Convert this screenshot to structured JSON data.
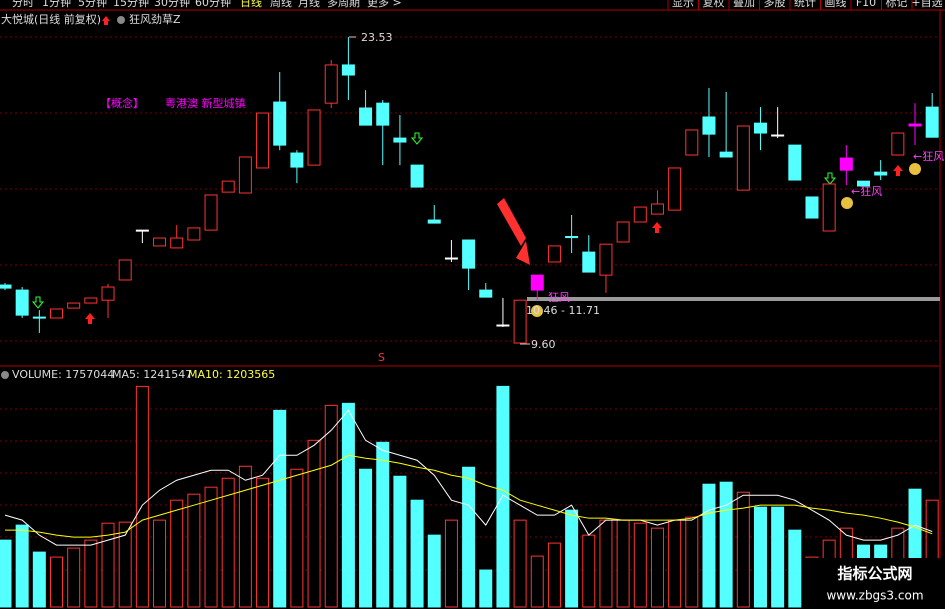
{
  "toolbar": {
    "periods": [
      "分时",
      "1分钟",
      "5分钟",
      "15分钟",
      "30分钟",
      "60分钟",
      "日线",
      "周线",
      "月线",
      "多周期",
      "更多 >"
    ],
    "tools": [
      "显示",
      "复权",
      "叠加",
      "多股",
      "统计",
      "画线",
      "F10",
      "标记",
      "+自选"
    ]
  },
  "header": {
    "stock": "大悦城(日线 前复权)",
    "indicator": "狂风劲草Z"
  },
  "notes": {
    "concept": "【概念】",
    "tags": "粤港澳 新型城镇"
  },
  "chart_data": [
    {
      "type": "candlestick",
      "open": [
        12.24,
        12.01,
        10.78,
        10.74,
        11.19,
        11.42,
        11.55,
        12.47,
        14.74,
        14.02,
        13.93,
        14.29,
        14.74,
        16.47,
        16.43,
        17.57,
        20.57,
        18.25,
        17.7,
        20.52,
        22.26,
        20.3,
        20.52,
        18.93,
        17.7,
        15.2,
        13.47,
        14.29,
        12.01,
        10.42,
        9.6,
        12.69,
        13.29,
        14.45,
        13.74,
        12.69,
        14.2,
        15.11,
        15.47,
        15.65,
        18.16,
        19.89,
        18.29,
        16.56,
        19.61,
        19.07,
        18.61,
        16.25,
        14.7,
        18.02,
        16.97,
        17.38,
        18.16,
        19.57,
        20.34
      ],
      "high": [
        12.33,
        12.15,
        11.1,
        11.15,
        11.42,
        11.65,
        12.29,
        13.38,
        14.74,
        14.38,
        14.97,
        14.84,
        16.34,
        16.97,
        18.07,
        20.07,
        21.94,
        18.38,
        20.21,
        22.48,
        23.53,
        21.11,
        20.66,
        19.98,
        17.7,
        15.88,
        14.29,
        14.29,
        12.33,
        11.65,
        11.55,
        12.69,
        14.02,
        15.43,
        14.51,
        14.1,
        15.11,
        15.79,
        16.56,
        17.57,
        19.3,
        21.21,
        21.03,
        19.48,
        20.34,
        20.34,
        18.61,
        16.25,
        16.84,
        18.61,
        16.97,
        17.93,
        19.16,
        20.52,
        20.98
      ],
      "low": [
        12.01,
        10.74,
        10.06,
        10.74,
        11.19,
        11.42,
        10.74,
        12.47,
        14.15,
        14.02,
        13.93,
        14.29,
        14.74,
        16.47,
        16.43,
        17.57,
        18.38,
        16.88,
        17.7,
        20.3,
        20.66,
        19.52,
        17.7,
        17.7,
        16.7,
        15.06,
        13.29,
        12.01,
        11.69,
        10.33,
        9.6,
        11.55,
        13.29,
        13.7,
        12.83,
        11.88,
        14.2,
        15.11,
        15.47,
        15.65,
        18.16,
        18.07,
        18.07,
        16.56,
        18.38,
        18.93,
        17.02,
        15.29,
        14.7,
        16.79,
        16.75,
        17.02,
        18.16,
        18.61,
        18.97
      ],
      "close": [
        12.1,
        10.87,
        10.74,
        11.15,
        11.42,
        11.65,
        12.15,
        13.38,
        14.74,
        14.38,
        14.38,
        14.84,
        16.34,
        16.97,
        18.07,
        20.07,
        18.61,
        17.61,
        20.21,
        22.26,
        21.8,
        19.52,
        19.52,
        18.75,
        16.7,
        15.06,
        13.47,
        13.01,
        11.69,
        10.42,
        11.55,
        12.01,
        14.02,
        14.4,
        12.83,
        14.1,
        15.11,
        15.79,
        15.93,
        17.57,
        19.3,
        19.11,
        18.07,
        19.48,
        19.16,
        19.07,
        17.02,
        15.29,
        16.84,
        17.47,
        16.75,
        17.25,
        19.16,
        19.48,
        18.97
      ],
      "colors": [
        "#54ffff",
        "#54ffff",
        "#54ffff",
        "#ff3232",
        "#ff3232",
        "#ff3232",
        "#ff3232",
        "#ff3232",
        "#ffffff",
        "#ff3232",
        "#ff3232",
        "#ff3232",
        "#ff3232",
        "#ff3232",
        "#ff3232",
        "#ff3232",
        "#54ffff",
        "#54ffff",
        "#ff3232",
        "#ff3232",
        "#54ffff",
        "#54ffff",
        "#54ffff",
        "#54ffff",
        "#54ffff",
        "#54ffff",
        "#ffffff",
        "#54ffff",
        "#54ffff",
        "#ffffff",
        "#ff3232",
        "#ff00ff",
        "#ff3232",
        "#54ffff",
        "#54ffff",
        "#ff3232",
        "#ff3232",
        "#ff3232",
        "#ff3232",
        "#ff3232",
        "#ff3232",
        "#54ffff",
        "#54ffff",
        "#ff3232",
        "#54ffff",
        "#ffffff",
        "#54ffff",
        "#54ffff",
        "#ff3232",
        "#ff00ff",
        "#54ffff",
        "#54ffff",
        "#ff3232",
        "#ff00ff",
        "#54ffff"
      ],
      "ylim": [
        8.6,
        24.67
      ],
      "annotations": {
        "high": "23.53",
        "low": "9.60",
        "zone": "10.46 - 11.71",
        "signals": [
          "狂风",
          "←狂风",
          "←狂风"
        ],
        "s": "S"
      }
    },
    {
      "type": "bar",
      "legend": [
        "VOLUME: 1757044",
        "MA5: 1241547",
        "MA10: 1203565"
      ],
      "series": [
        {
          "name": "VOLUME",
          "values": [
            1100000,
            1347000,
            903000,
            821000,
            969000,
            1100000,
            1379000,
            1396000,
            3629000,
            1429000,
            1757000,
            1856000,
            1971000,
            2118000,
            2315000,
            2118000,
            3235000,
            2266000,
            2742000,
            3317000,
            3350000,
            2266000,
            2709000,
            2151000,
            1757000,
            1182000,
            1429000,
            2299000,
            608000,
            3629000,
            1429000,
            837000,
            1051000,
            1593000,
            1182000,
            1429000,
            1429000,
            1379000,
            1297000,
            1429000,
            1478000,
            2020000,
            2053000,
            1888000,
            1642000,
            1642000,
            1264000,
            821000,
            1100000,
            1297000,
            1018000,
            1018000,
            1297000,
            1938000,
            1757044
          ],
          "colors": [
            "#54ffff",
            "#54ffff",
            "#54ffff",
            "#ff3232",
            "#ff3232",
            "#ff3232",
            "#ff3232",
            "#ff3232",
            "#ff3232",
            "#ff3232",
            "#ff3232",
            "#ff3232",
            "#ff3232",
            "#ff3232",
            "#ff3232",
            "#ff3232",
            "#54ffff",
            "#ff3232",
            "#ff3232",
            "#ff3232",
            "#54ffff",
            "#54ffff",
            "#54ffff",
            "#54ffff",
            "#54ffff",
            "#54ffff",
            "#ff3232",
            "#54ffff",
            "#54ffff",
            "#54ffff",
            "#ff3232",
            "#ff3232",
            "#ff3232",
            "#54ffff",
            "#ff3232",
            "#ff3232",
            "#ff3232",
            "#ff3232",
            "#ff3232",
            "#ff3232",
            "#ff3232",
            "#54ffff",
            "#54ffff",
            "#ff3232",
            "#54ffff",
            "#54ffff",
            "#54ffff",
            "#ff3232",
            "#ff3232",
            "#ff3232",
            "#54ffff",
            "#54ffff",
            "#ff3232",
            "#54ffff",
            "#ff3232"
          ]
        },
        {
          "name": "MA5",
          "color": "#ffffff",
          "values": [
            1511000,
            1429000,
            1182000,
            1018000,
            1018000,
            1018000,
            1100000,
            1182000,
            1675000,
            1921000,
            2085000,
            2168000,
            2250000,
            2250000,
            2085000,
            2168000,
            2496000,
            2496000,
            2660000,
            2907000,
            3235000,
            2742000,
            2578000,
            2496000,
            2414000,
            2168000,
            1757000,
            1675000,
            1347000,
            1839000,
            1675000,
            1511000,
            1511000,
            1675000,
            1182000,
            1429000,
            1429000,
            1429000,
            1347000,
            1429000,
            1429000,
            1593000,
            1675000,
            1839000,
            1839000,
            1839000,
            1757000,
            1593000,
            1429000,
            1182000,
            1100000,
            1100000,
            1182000,
            1347000,
            1241547
          ]
        },
        {
          "name": "MA10",
          "color": "#ffff00",
          "values": [
            1264000,
            1264000,
            1232000,
            1182000,
            1149000,
            1149000,
            1182000,
            1232000,
            1429000,
            1511000,
            1593000,
            1675000,
            1757000,
            1839000,
            1921000,
            2003000,
            2085000,
            2168000,
            2250000,
            2332000,
            2496000,
            2447000,
            2414000,
            2365000,
            2299000,
            2250000,
            2168000,
            2118000,
            2003000,
            1921000,
            1757000,
            1675000,
            1593000,
            1511000,
            1461000,
            1461000,
            1429000,
            1429000,
            1429000,
            1429000,
            1461000,
            1544000,
            1593000,
            1626000,
            1675000,
            1675000,
            1675000,
            1626000,
            1593000,
            1544000,
            1511000,
            1461000,
            1396000,
            1314000,
            1203565
          ]
        }
      ],
      "ylim": [
        0,
        3800000
      ]
    }
  ],
  "watermark": {
    "title": "指标公式网",
    "url": "www.zbgs3.com"
  }
}
